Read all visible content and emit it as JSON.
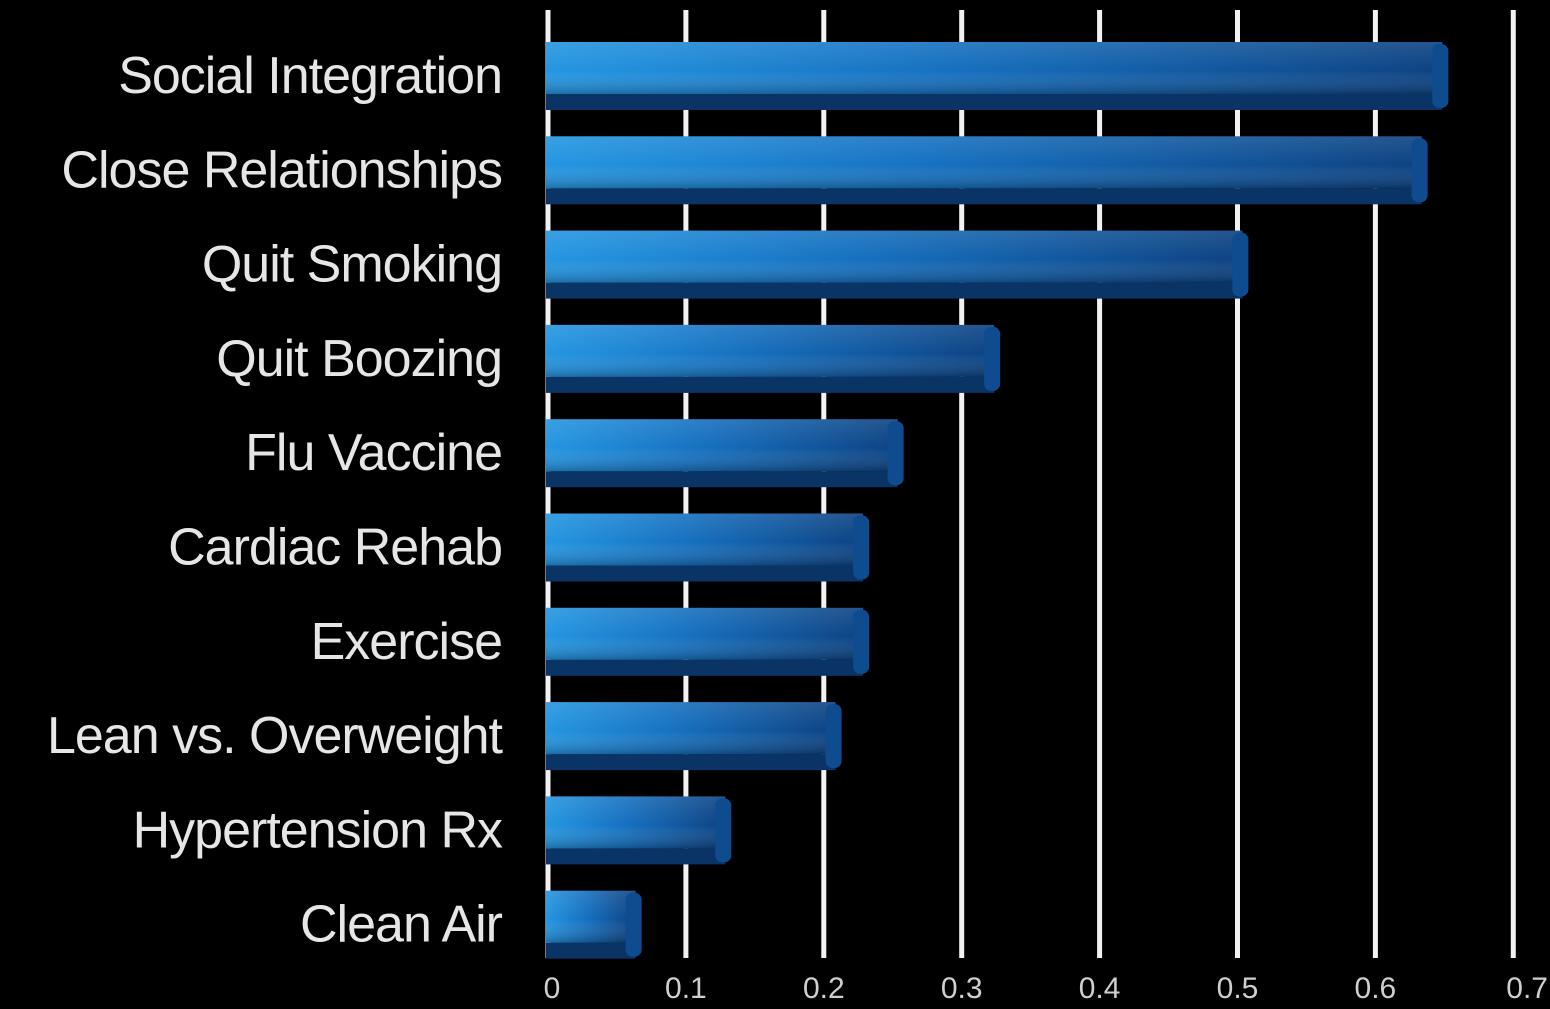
{
  "chart_data": {
    "type": "bar",
    "orientation": "horizontal",
    "categories": [
      "Social Integration",
      "Close Relationships",
      "Quit Smoking",
      "Quit Boozing",
      "Flu Vaccine",
      "Cardiac Rehab",
      "Exercise",
      "Lean vs. Overweight",
      "Hypertension Rx",
      "Clean Air"
    ],
    "values": [
      0.65,
      0.635,
      0.505,
      0.325,
      0.255,
      0.23,
      0.23,
      0.21,
      0.13,
      0.065
    ],
    "x_ticks": [
      "0",
      "0.1",
      "0.2",
      "0.3",
      "0.4",
      "0.5",
      "0.6",
      "0.7"
    ],
    "xlim": [
      0,
      0.7
    ],
    "grid": true,
    "bar_color": "#1a7fd0",
    "bar_color_dark": "#0c3f78",
    "background": "#000000"
  }
}
